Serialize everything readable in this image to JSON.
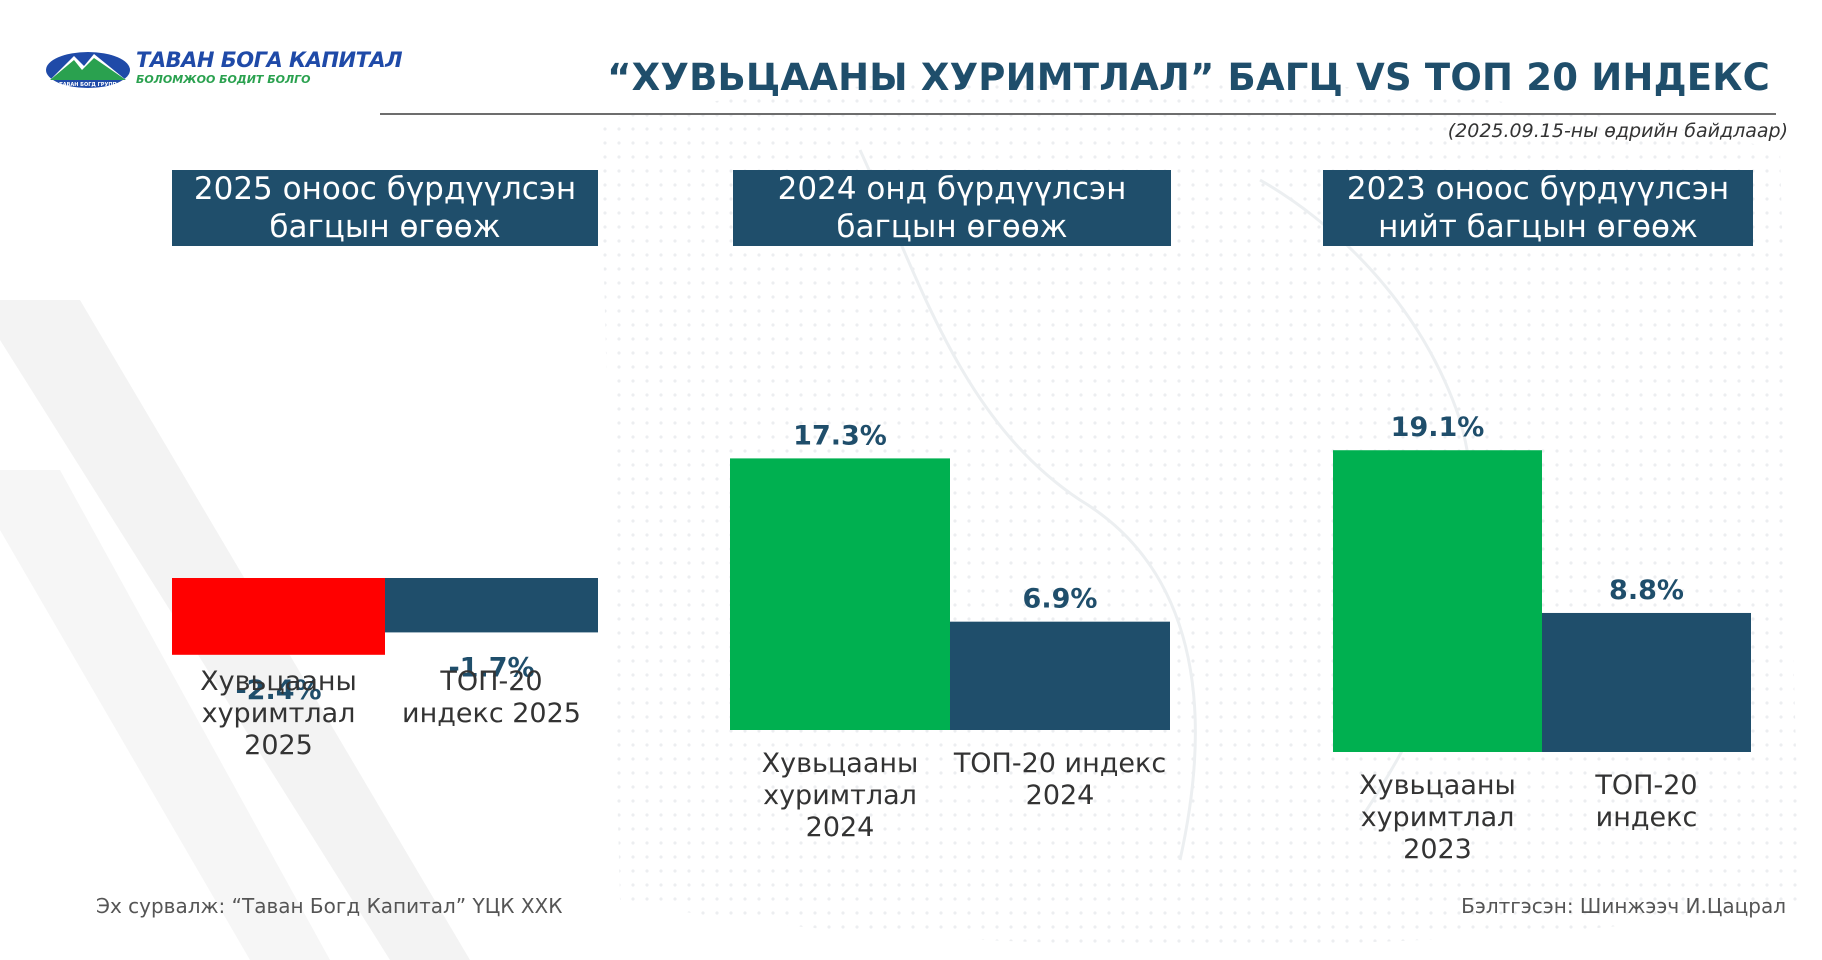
{
  "header": {
    "logo_brand": "ТАВАН БОГА КАПИТАЛ",
    "logo_tagline": "БОЛОМЖОО БОДИТ БОЛГО",
    "logo_badge": "ТАВАН БОГД ГРУПП",
    "title": "“ХУВЬЦААНЫ ХУРИМТЛАЛ” БАГЦ VS ТОП 20 ИНДЕКС",
    "as_of": "(2025.09.15-ны өдрийн байдлаар)"
  },
  "colors": {
    "accent": "#1f4e6b",
    "green": "#00b050",
    "red": "#ff0000"
  },
  "chart_data": [
    {
      "type": "bar",
      "title": "2025 оноос бүрдүүлсэн\nбагцын өгөөж",
      "categories": [
        "Хувьцааны\nхуримтлал\n2025",
        "ТОП-20\nиндекс 2025"
      ],
      "values": [
        -2.4,
        -1.7
      ],
      "data_labels": [
        "-2.4%",
        "-1.7%"
      ],
      "bar_colors": [
        "#ff0000",
        "#1f4e6b"
      ]
    },
    {
      "type": "bar",
      "title": "2024 онд бүрдүүлсэн\nбагцын өгөөж",
      "categories": [
        "Хувьцааны\nхуримтлал\n2024",
        "ТОП-20 индекс\n2024"
      ],
      "values": [
        17.3,
        6.9
      ],
      "data_labels": [
        "17.3%",
        "6.9%"
      ],
      "bar_colors": [
        "#00b050",
        "#1f4e6b"
      ]
    },
    {
      "type": "bar",
      "title": "2023 оноос бүрдүүлсэн\nнийт багцын өгөөж",
      "categories": [
        "Хувьцааны\nхуримтлал\n2023",
        "ТОП-20\nиндекс"
      ],
      "values": [
        19.1,
        8.8
      ],
      "data_labels": [
        "19.1%",
        "8.8%"
      ],
      "bar_colors": [
        "#00b050",
        "#1f4e6b"
      ]
    }
  ],
  "footer": {
    "source": "Эх сурвалж: “Таван Богд Капитал” ҮЦК ХХК",
    "prepared_by": "Бэлтгэсэн: Шинжээч И.Цацрал"
  }
}
